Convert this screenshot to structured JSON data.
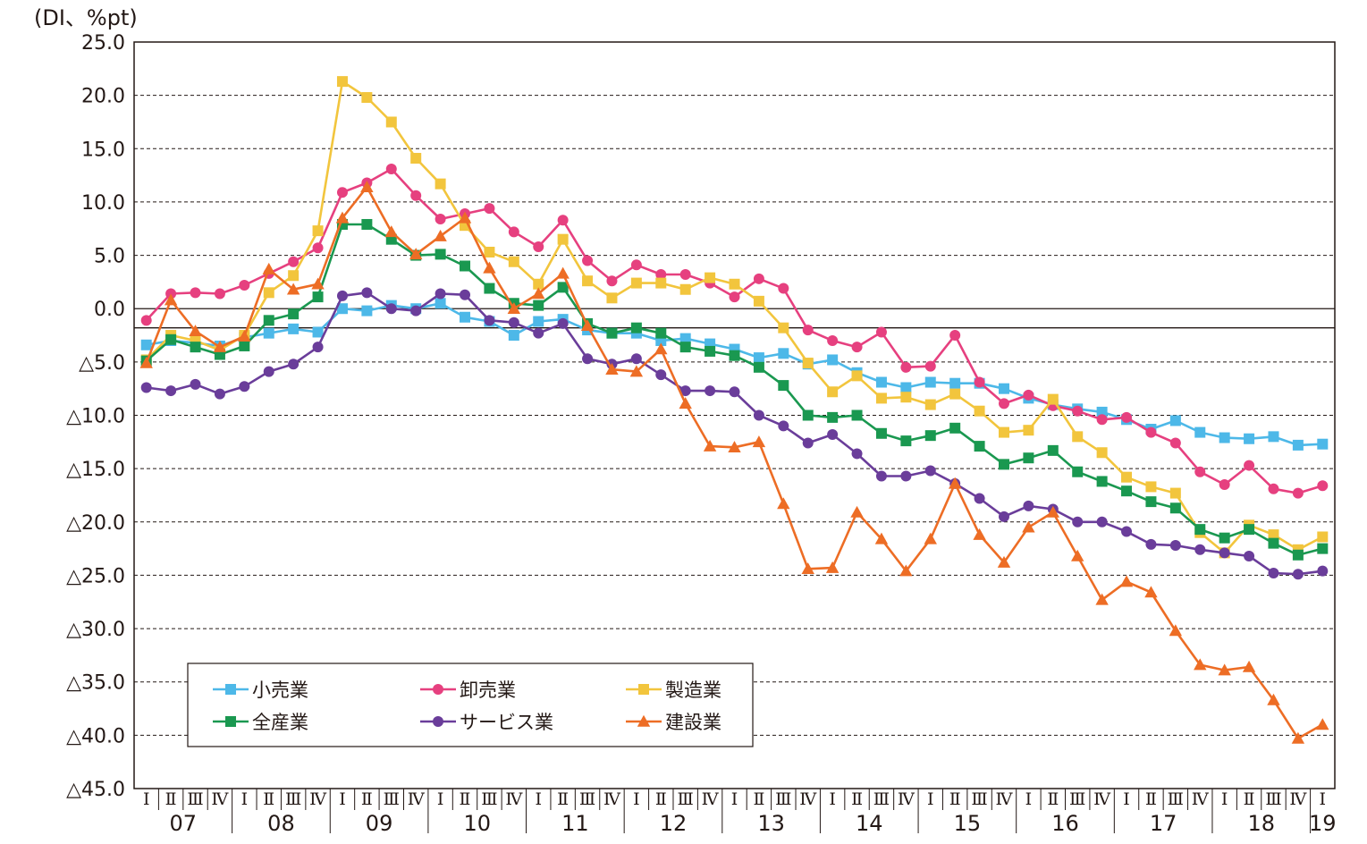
{
  "chart_data": {
    "type": "line",
    "title": "",
    "ylabel": "(DI、%pt)",
    "xlabel": "",
    "ylim": [
      -45,
      25
    ],
    "ytick_values": [
      25,
      20,
      15,
      10,
      5,
      0,
      -5,
      -10,
      -15,
      -20,
      -25,
      -30,
      -35,
      -40,
      -45
    ],
    "ytick_labels": [
      "25.0",
      "20.0",
      "15.0",
      "10.0",
      "5.0",
      "0.0",
      "△5.0",
      "△10.0",
      "△15.0",
      "△20.0",
      "△25.0",
      "△30.0",
      "△35.0",
      "△40.0",
      "△45.0"
    ],
    "reference_line": -1.8,
    "quarter_labels": [
      "Ⅰ",
      "Ⅱ",
      "Ⅲ",
      "Ⅳ"
    ],
    "year_labels": [
      "07",
      "08",
      "09",
      "10",
      "11",
      "12",
      "13",
      "14",
      "15",
      "16",
      "17",
      "18",
      "19"
    ],
    "series": [
      {
        "name": "小売業",
        "color": "#4db8e8",
        "marker": "square",
        "values": [
          -3.4,
          -3.0,
          -3.2,
          -3.5,
          -2.7,
          -2.3,
          -1.9,
          -2.2,
          0.0,
          -0.2,
          0.3,
          0.0,
          0.5,
          -0.8,
          -1.2,
          -2.5,
          -1.2,
          -1.0,
          -2.0,
          -2.3,
          -2.3,
          -3.0,
          -2.8,
          -3.3,
          -3.8,
          -4.6,
          -4.2,
          -5.2,
          -4.8,
          -6.0,
          -6.9,
          -7.4,
          -6.9,
          -7.0,
          -7.0,
          -7.5,
          -8.4,
          -9.0,
          -9.4,
          -9.7,
          -10.4,
          -11.3,
          -10.5,
          -11.6,
          -12.1,
          -12.2,
          -12.0,
          -12.8,
          -12.7
        ]
      },
      {
        "name": "卸売業",
        "color": "#e6407f",
        "marker": "circle",
        "values": [
          -1.1,
          1.4,
          1.5,
          1.4,
          2.2,
          3.3,
          4.4,
          5.7,
          10.9,
          11.8,
          13.1,
          10.6,
          8.4,
          8.9,
          9.4,
          7.2,
          5.8,
          8.3,
          4.5,
          2.6,
          4.1,
          3.2,
          3.2,
          2.4,
          1.1,
          2.8,
          1.9,
          -2.0,
          -3.0,
          -3.6,
          -2.2,
          -5.5,
          -5.4,
          -2.5,
          -6.9,
          -8.9,
          -8.1,
          -9.1,
          -9.6,
          -10.4,
          -10.2,
          -11.6,
          -12.6,
          -15.3,
          -16.5,
          -14.7,
          -16.9,
          -17.3,
          -16.6
        ]
      },
      {
        "name": "製造業",
        "color": "#f2c53d",
        "marker": "square",
        "values": [
          -4.8,
          -2.5,
          -3.0,
          -3.9,
          -2.5,
          1.5,
          3.1,
          7.3,
          21.3,
          19.8,
          17.5,
          14.1,
          11.7,
          7.8,
          5.3,
          4.4,
          2.3,
          6.5,
          2.6,
          1.0,
          2.4,
          2.4,
          1.8,
          2.9,
          2.3,
          0.7,
          -1.8,
          -5.1,
          -7.8,
          -6.3,
          -8.4,
          -8.3,
          -9.0,
          -8.0,
          -9.6,
          -11.6,
          -11.4,
          -8.5,
          -12.0,
          -13.5,
          -15.8,
          -16.7,
          -17.3,
          -21.0,
          -22.9,
          -20.3,
          -21.2,
          -22.6,
          -21.4
        ]
      },
      {
        "name": "全産業",
        "color": "#1a9850",
        "marker": "square",
        "values": [
          -4.9,
          -2.9,
          -3.6,
          -4.3,
          -3.5,
          -1.1,
          -0.5,
          1.1,
          7.9,
          7.9,
          6.5,
          5.0,
          5.1,
          4.0,
          1.9,
          0.5,
          0.3,
          2.0,
          -1.4,
          -2.3,
          -1.8,
          -2.3,
          -3.6,
          -4.0,
          -4.4,
          -5.5,
          -7.2,
          -10.0,
          -10.2,
          -10.0,
          -11.7,
          -12.4,
          -11.9,
          -11.2,
          -12.9,
          -14.6,
          -14.0,
          -13.3,
          -15.3,
          -16.2,
          -17.1,
          -18.1,
          -18.7,
          -20.7,
          -21.5,
          -20.7,
          -22.0,
          -23.1,
          -22.5
        ]
      },
      {
        "name": "サービス業",
        "color": "#6a3d9a",
        "marker": "circle",
        "values": [
          -7.4,
          -7.7,
          -7.1,
          -8.0,
          -7.3,
          -5.9,
          -5.2,
          -3.6,
          1.2,
          1.5,
          0.0,
          -0.2,
          1.4,
          1.3,
          -1.1,
          -1.3,
          -2.3,
          -1.4,
          -4.7,
          -5.2,
          -4.7,
          -6.2,
          -7.7,
          -7.7,
          -7.8,
          -10.0,
          -11.0,
          -12.6,
          -11.8,
          -13.6,
          -15.7,
          -15.7,
          -15.2,
          -16.4,
          -17.8,
          -19.5,
          -18.5,
          -18.8,
          -20.0,
          -20.0,
          -20.9,
          -22.1,
          -22.2,
          -22.6,
          -22.9,
          -23.2,
          -24.8,
          -24.9,
          -24.6
        ]
      },
      {
        "name": "建設業",
        "color": "#ed6d25",
        "marker": "triangle",
        "values": [
          -5.1,
          0.8,
          -2.1,
          -3.6,
          -2.6,
          3.7,
          1.8,
          2.3,
          8.5,
          11.4,
          7.2,
          5.1,
          6.8,
          8.5,
          3.8,
          0.0,
          1.4,
          3.3,
          -1.6,
          -5.7,
          -5.9,
          -3.8,
          -8.9,
          -12.9,
          -13.0,
          -12.5,
          -18.3,
          -24.4,
          -24.3,
          -19.1,
          -21.6,
          -24.6,
          -21.6,
          -16.4,
          -21.2,
          -23.8,
          -20.5,
          -19.1,
          -23.2,
          -27.3,
          -25.6,
          -26.6,
          -30.2,
          -33.4,
          -33.9,
          -33.6,
          -36.7,
          -40.3,
          -39.0
        ]
      }
    ],
    "legend_position": "bottom-left"
  }
}
